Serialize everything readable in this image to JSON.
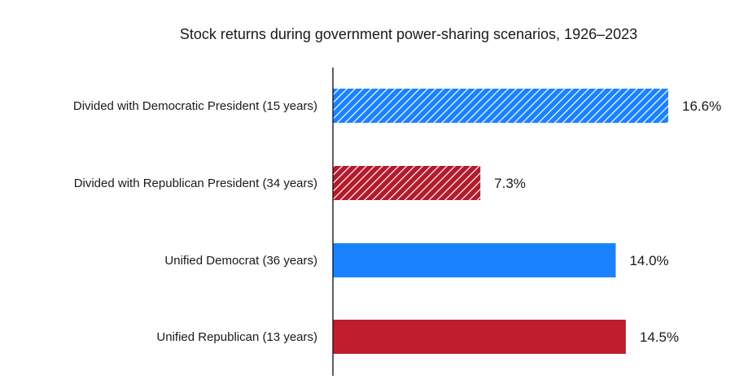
{
  "chart_data": {
    "type": "bar",
    "orientation": "horizontal",
    "title": "Stock returns during government power-sharing scenarios, 1926–2023",
    "categories": [
      "Divided with Democratic President (15 years)",
      "Divided with Republican President  (34 years)",
      "Unified Democrat (36 years)",
      "Unified Republican (13 years)"
    ],
    "values": [
      16.6,
      7.3,
      14.0,
      14.5
    ],
    "value_labels": [
      "16.6%",
      "7.3%",
      "14.0%",
      "14.5%"
    ],
    "xlim": [
      0,
      16.6
    ],
    "grid": false,
    "bar_styles": [
      {
        "color": "#1a82ff",
        "pattern": "hatched"
      },
      {
        "color": "#b31b2c",
        "pattern": "hatched"
      },
      {
        "color": "#1a82ff",
        "pattern": "solid"
      },
      {
        "color": "#be1e2d",
        "pattern": "solid"
      }
    ]
  }
}
